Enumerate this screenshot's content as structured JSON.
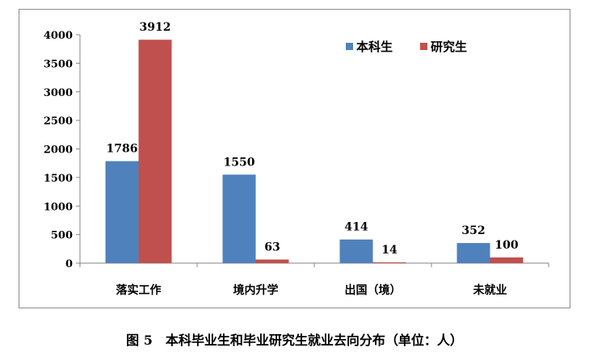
{
  "chart_data": {
    "type": "bar",
    "categories": [
      "落实工作",
      "境内升学",
      "出国（境）",
      "未就业"
    ],
    "series": [
      {
        "name": "本科生",
        "color": "#4f81bd",
        "values": [
          1786,
          1550,
          414,
          352
        ]
      },
      {
        "name": "研究生",
        "color": "#c0504d",
        "values": [
          3912,
          63,
          14,
          100
        ]
      }
    ],
    "ylim": [
      0,
      4000
    ],
    "yticks": [
      0,
      500,
      1000,
      1500,
      2000,
      2500,
      3000,
      3500,
      4000
    ],
    "legend_position": "top-right",
    "grid": false
  },
  "caption": "图 5　本科毕业生和毕业研究生就业去向分布（单位：人）"
}
